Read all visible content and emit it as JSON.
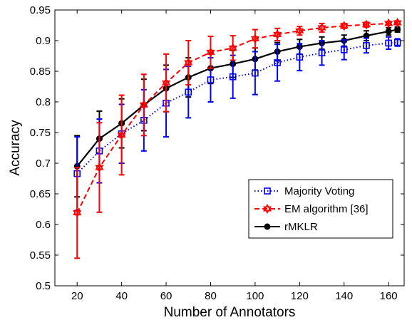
{
  "chart_data": {
    "type": "line",
    "title": "",
    "xlabel": "Number of Annotators",
    "ylabel": "Accuracy",
    "xlim": [
      10,
      167
    ],
    "ylim": [
      0.5,
      0.95
    ],
    "xticks": [
      20,
      40,
      60,
      80,
      100,
      120,
      140,
      160
    ],
    "yticks": [
      0.5,
      0.55,
      0.6,
      0.65,
      0.7,
      0.75,
      0.8,
      0.85,
      0.9,
      0.95
    ],
    "xtick_labels": [
      "20",
      "40",
      "60",
      "80",
      "100",
      "120",
      "140",
      "160"
    ],
    "ytick_labels": [
      "0.5",
      "0.55",
      "0.6",
      "0.65",
      "0.7",
      "0.75",
      "0.8",
      "0.85",
      "0.9",
      "0.95"
    ],
    "grid": false,
    "legend_position": "lower-right",
    "series": [
      {
        "name": "Majority Voting",
        "color": "#0000ff",
        "line_style": "dotted",
        "marker": "square",
        "x": [
          20,
          30,
          40,
          50,
          60,
          70,
          80,
          90,
          100,
          110,
          120,
          130,
          140,
          150,
          160,
          164
        ],
        "y": [
          0.683,
          0.72,
          0.748,
          0.77,
          0.798,
          0.816,
          0.836,
          0.841,
          0.847,
          0.864,
          0.873,
          0.88,
          0.885,
          0.892,
          0.896,
          0.897
        ],
        "err": [
          0.06,
          0.052,
          0.048,
          0.05,
          0.055,
          0.042,
          0.036,
          0.035,
          0.035,
          0.03,
          0.022,
          0.02,
          0.016,
          0.012,
          0.01,
          0.006
        ]
      },
      {
        "name": "EM algorithm [36]",
        "color": "#ff0000",
        "line_style": "dashed",
        "marker": "hexagram",
        "x": [
          20,
          30,
          40,
          50,
          60,
          70,
          80,
          90,
          100,
          110,
          120,
          130,
          140,
          150,
          160,
          164
        ],
        "y": [
          0.619,
          0.693,
          0.746,
          0.795,
          0.831,
          0.864,
          0.881,
          0.888,
          0.903,
          0.91,
          0.916,
          0.921,
          0.924,
          0.926,
          0.928,
          0.929
        ],
        "err": [
          0.074,
          0.073,
          0.065,
          0.05,
          0.047,
          0.036,
          0.026,
          0.02,
          0.015,
          0.01,
          0.007,
          0.007,
          0.004,
          0.004,
          0.003,
          0.002
        ]
      },
      {
        "name": "rMKLR",
        "color": "#000000",
        "line_style": "solid",
        "marker": "circle",
        "x": [
          20,
          30,
          40,
          50,
          60,
          70,
          80,
          90,
          100,
          110,
          120,
          130,
          140,
          150,
          160,
          164
        ],
        "y": [
          0.695,
          0.74,
          0.765,
          0.795,
          0.822,
          0.84,
          0.855,
          0.862,
          0.87,
          0.882,
          0.89,
          0.896,
          0.9,
          0.908,
          0.915,
          0.918
        ],
        "err": [
          0.05,
          0.045,
          0.04,
          0.042,
          0.038,
          0.032,
          0.025,
          0.022,
          0.018,
          0.015,
          0.012,
          0.01,
          0.009,
          0.008,
          0.006,
          0.004
        ]
      }
    ]
  }
}
